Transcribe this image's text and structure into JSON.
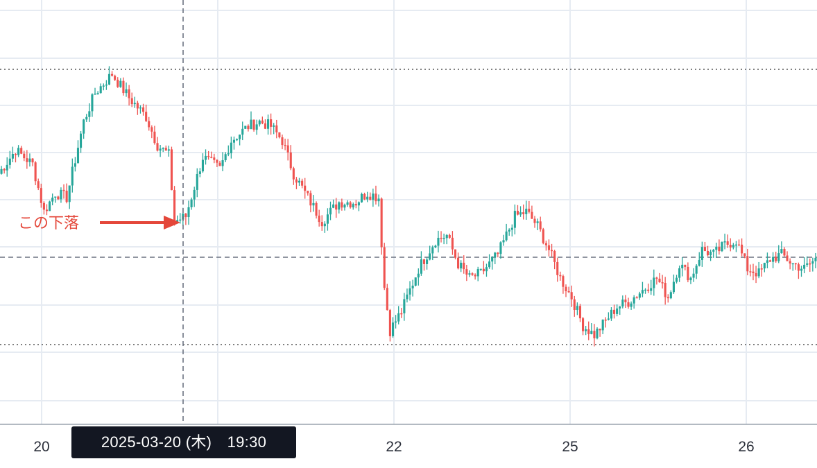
{
  "colors": {
    "up": "#26a69a",
    "down": "#ef5350",
    "grid": "#e6ebf2",
    "axis": "#2a2e39",
    "annotation": "#e4473a",
    "crosshair": "#6b7280"
  },
  "chart_data": {
    "type": "candlestick",
    "title": "",
    "xlabel": "",
    "ylabel": "",
    "x_tick_labels": [
      "20",
      "22",
      "25",
      "26"
    ],
    "crosshair_label": "2025-03-20 (木)　19:30",
    "annotation": "この下落",
    "levels": {
      "upper_dotted": 0.08,
      "lower_dotted": 1.0,
      "dashed_reference": 0.68
    },
    "ylim": [
      0.0,
      1.28
    ],
    "series": [
      {
        "name": "price",
        "close_path": [
          0.42,
          0.48,
          0.55,
          0.62,
          0.7,
          0.68,
          0.76,
          0.86,
          0.98,
          1.05,
          1.03,
          1.06,
          1.0,
          0.96,
          0.88,
          0.82,
          0.84,
          0.8,
          0.72,
          0.66,
          0.56,
          0.5,
          0.44,
          0.38,
          0.34,
          0.3,
          0.28,
          0.24,
          0.18,
          0.12,
          0.15,
          0.22,
          0.2,
          0.25,
          0.3,
          0.26,
          0.31,
          0.38,
          0.43,
          0.48,
          0.56,
          0.7,
          0.78,
          0.85,
          0.9,
          0.98,
          1.02,
          0.96,
          1.0,
          1.05,
          1.1,
          1.14,
          1.16,
          1.18,
          1.16,
          1.1,
          1.06,
          1.0,
          0.95,
          0.92,
          0.88,
          0.85,
          0.8,
          0.76,
          0.72,
          0.66,
          0.62,
          0.58,
          0.54,
          0.52,
          0.5,
          0.48,
          0.46,
          0.4,
          0.3,
          0.26,
          0.28,
          0.3,
          0.32,
          0.3,
          0.28,
          0.3,
          0.3,
          0.32,
          0.34,
          0.36,
          0.4,
          0.44,
          0.4,
          0.38,
          0.35,
          0.3,
          0.26,
          0.24,
          0.2,
          0.18,
          0.16,
          0.14,
          0.16,
          0.22,
          0.3,
          0.36,
          0.42,
          0.48,
          0.55,
          0.6,
          0.64,
          0.68,
          0.74,
          0.8,
          0.83,
          0.86,
          0.87,
          0.86,
          0.85,
          0.84,
          0.82,
          0.8,
          0.8,
          0.79,
          0.78,
          0.8,
          0.84,
          0.9,
          0.96,
          1.0,
          0.98,
          0.96,
          0.94,
          0.9,
          0.86,
          0.82,
          0.78,
          0.74,
          0.7,
          0.66,
          0.62,
          0.6,
          0.56,
          0.52,
          0.48,
          0.44,
          0.4,
          0.34,
          0.3,
          0.28,
          0.26,
          0.3,
          0.32,
          0.3,
          0.28,
          0.28,
          0.3,
          0.33,
          0.36,
          0.4,
          0.42,
          0.44,
          0.46,
          0.5,
          0.52,
          0.5,
          0.48,
          0.46,
          0.44,
          0.42,
          0.4,
          0.38,
          0.36,
          0.34,
          0.32,
          0.3,
          0.28,
          0.26,
          0.22,
          0.18,
          0.14,
          0.1,
          0.08,
          0.1,
          0.14,
          0.18,
          0.24,
          0.3,
          0.28,
          0.26,
          0.3,
          0.34,
          0.36,
          0.4,
          0.46,
          0.52,
          0.58,
          0.62,
          0.64,
          0.66,
          0.68,
          0.7,
          0.72,
          0.7,
          0.66,
          0.62,
          0.58,
          0.52,
          0.46,
          0.4,
          0.36,
          0.32,
          0.3,
          0.28,
          0.26,
          0.24,
          0.22,
          0.2,
          0.18,
          0.14,
          0.12,
          0.1,
          0.08,
          0.06,
          0.06,
          0.06,
          0.04,
          0.04,
          0.06,
          0.1,
          0.14,
          0.18,
          0.2,
          0.18,
          0.16,
          0.14,
          0.12,
          0.1,
          0.08,
          0.08,
          0.1,
          0.14,
          0.16,
          0.18,
          0.2,
          0.24,
          0.28,
          0.3,
          0.34,
          0.4,
          0.44,
          0.46,
          0.48,
          0.46,
          0.44,
          0.4,
          0.36,
          0.3,
          0.24,
          0.2,
          0.16,
          0.12,
          0.08,
          0.06,
          0.06,
          0.1,
          0.14,
          0.16,
          0.18,
          0.2,
          0.22,
          0.26,
          0.3,
          0.34,
          0.38,
          0.42,
          0.46,
          0.48,
          0.5,
          0.52,
          0.5,
          0.48,
          0.46,
          0.44,
          0.42,
          0.4,
          0.38,
          0.36,
          0.34,
          0.32,
          0.3,
          0.28,
          0.26,
          0.22,
          0.18,
          0.14,
          0.1,
          0.08,
          0.1,
          0.14,
          0.18,
          0.22,
          0.26,
          0.3,
          0.34,
          0.4,
          0.46,
          0.5,
          0.52,
          0.54,
          0.56,
          0.58,
          0.56,
          0.54,
          0.52,
          0.5,
          0.48,
          0.46,
          0.44,
          0.42,
          0.4,
          0.38,
          0.36,
          0.36,
          0.34,
          0.36,
          0.38,
          0.4,
          0.42,
          0.44,
          0.46,
          0.48,
          0.5,
          0.52,
          0.52,
          0.5,
          0.48,
          0.46,
          0.44,
          0.42,
          0.4
        ]
      }
    ],
    "window": {
      "start_index": 0,
      "candles": 240,
      "anchors": [
        [
          0,
          0.78
        ],
        [
          6,
          0.88
        ],
        [
          12,
          0.82
        ],
        [
          16,
          0.62
        ],
        [
          20,
          0.7
        ],
        [
          24,
          0.68
        ],
        [
          30,
          1.0
        ],
        [
          34,
          1.12
        ],
        [
          40,
          1.2
        ],
        [
          46,
          1.1
        ],
        [
          52,
          1.02
        ],
        [
          56,
          0.9
        ],
        [
          60,
          0.86
        ],
        [
          62,
          0.58
        ],
        [
          66,
          0.6
        ],
        [
          72,
          0.85
        ],
        [
          78,
          0.8
        ],
        [
          82,
          0.92
        ],
        [
          88,
          0.98
        ],
        [
          92,
          1.0
        ],
        [
          96,
          0.98
        ],
        [
          100,
          0.92
        ],
        [
          104,
          0.78
        ],
        [
          110,
          0.66
        ],
        [
          114,
          0.58
        ],
        [
          120,
          0.66
        ],
        [
          126,
          0.66
        ],
        [
          130,
          0.7
        ],
        [
          134,
          0.68
        ],
        [
          136,
          0.3
        ],
        [
          138,
          0.12
        ],
        [
          142,
          0.2
        ],
        [
          148,
          0.38
        ],
        [
          154,
          0.5
        ],
        [
          158,
          0.52
        ],
        [
          162,
          0.4
        ],
        [
          166,
          0.34
        ],
        [
          170,
          0.36
        ],
        [
          176,
          0.44
        ],
        [
          182,
          0.6
        ],
        [
          186,
          0.62
        ],
        [
          190,
          0.56
        ],
        [
          194,
          0.46
        ],
        [
          198,
          0.34
        ],
        [
          202,
          0.26
        ],
        [
          206,
          0.14
        ],
        [
          210,
          0.1
        ],
        [
          214,
          0.16
        ],
        [
          218,
          0.22
        ],
        [
          222,
          0.24
        ],
        [
          228,
          0.3
        ],
        [
          232,
          0.34
        ],
        [
          236,
          0.26
        ],
        [
          240,
          0.4
        ],
        [
          244,
          0.34
        ],
        [
          248,
          0.46
        ],
        [
          252,
          0.44
        ],
        [
          256,
          0.48
        ],
        [
          260,
          0.5
        ],
        [
          264,
          0.38
        ],
        [
          268,
          0.36
        ],
        [
          272,
          0.42
        ],
        [
          276,
          0.44
        ],
        [
          280,
          0.4
        ],
        [
          284,
          0.38
        ],
        [
          288,
          0.42
        ]
      ]
    }
  }
}
